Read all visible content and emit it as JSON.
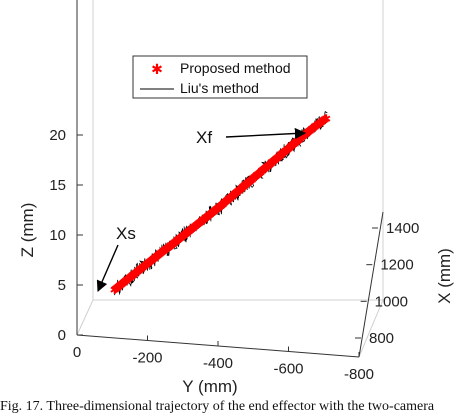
{
  "chart_data": {
    "type": "line",
    "projection": "3d",
    "series": [
      {
        "name": "Proposed method",
        "marker": "*",
        "color": "#ff0000",
        "y": [
          -50,
          -100,
          -150,
          -200,
          -250,
          -300,
          -350,
          -400,
          -450,
          -500,
          -550,
          -600,
          -650
        ],
        "z": [
          4,
          5.3,
          6.6,
          7.9,
          9.2,
          10.5,
          11.8,
          13.2,
          14.6,
          16,
          17.4,
          18.8,
          20
        ]
      },
      {
        "name": "Liu's method",
        "marker": "line",
        "color": "#000000",
        "noisy": true
      }
    ],
    "z_ticks": [
      "0",
      "5",
      "10",
      "15",
      "20"
    ],
    "y_ticks": [
      "0",
      "-200",
      "-400",
      "-600",
      "-800"
    ],
    "x_ticks": [
      "800",
      "1000",
      "1200",
      "1400"
    ],
    "zlabel": "Z (mm)",
    "ylabel": "Y (mm)",
    "xlabel": "X (mm)",
    "annotations": {
      "start": "Xs",
      "end": "Xf"
    },
    "zlim": [
      0,
      20
    ],
    "ylim": [
      0,
      -800
    ],
    "xlim": [
      800,
      1400
    ],
    "grid": true,
    "legend_position": "top-center"
  },
  "caption": "Fig. 17.   Three-dimensional trajectory of the end effector with the two-camera"
}
